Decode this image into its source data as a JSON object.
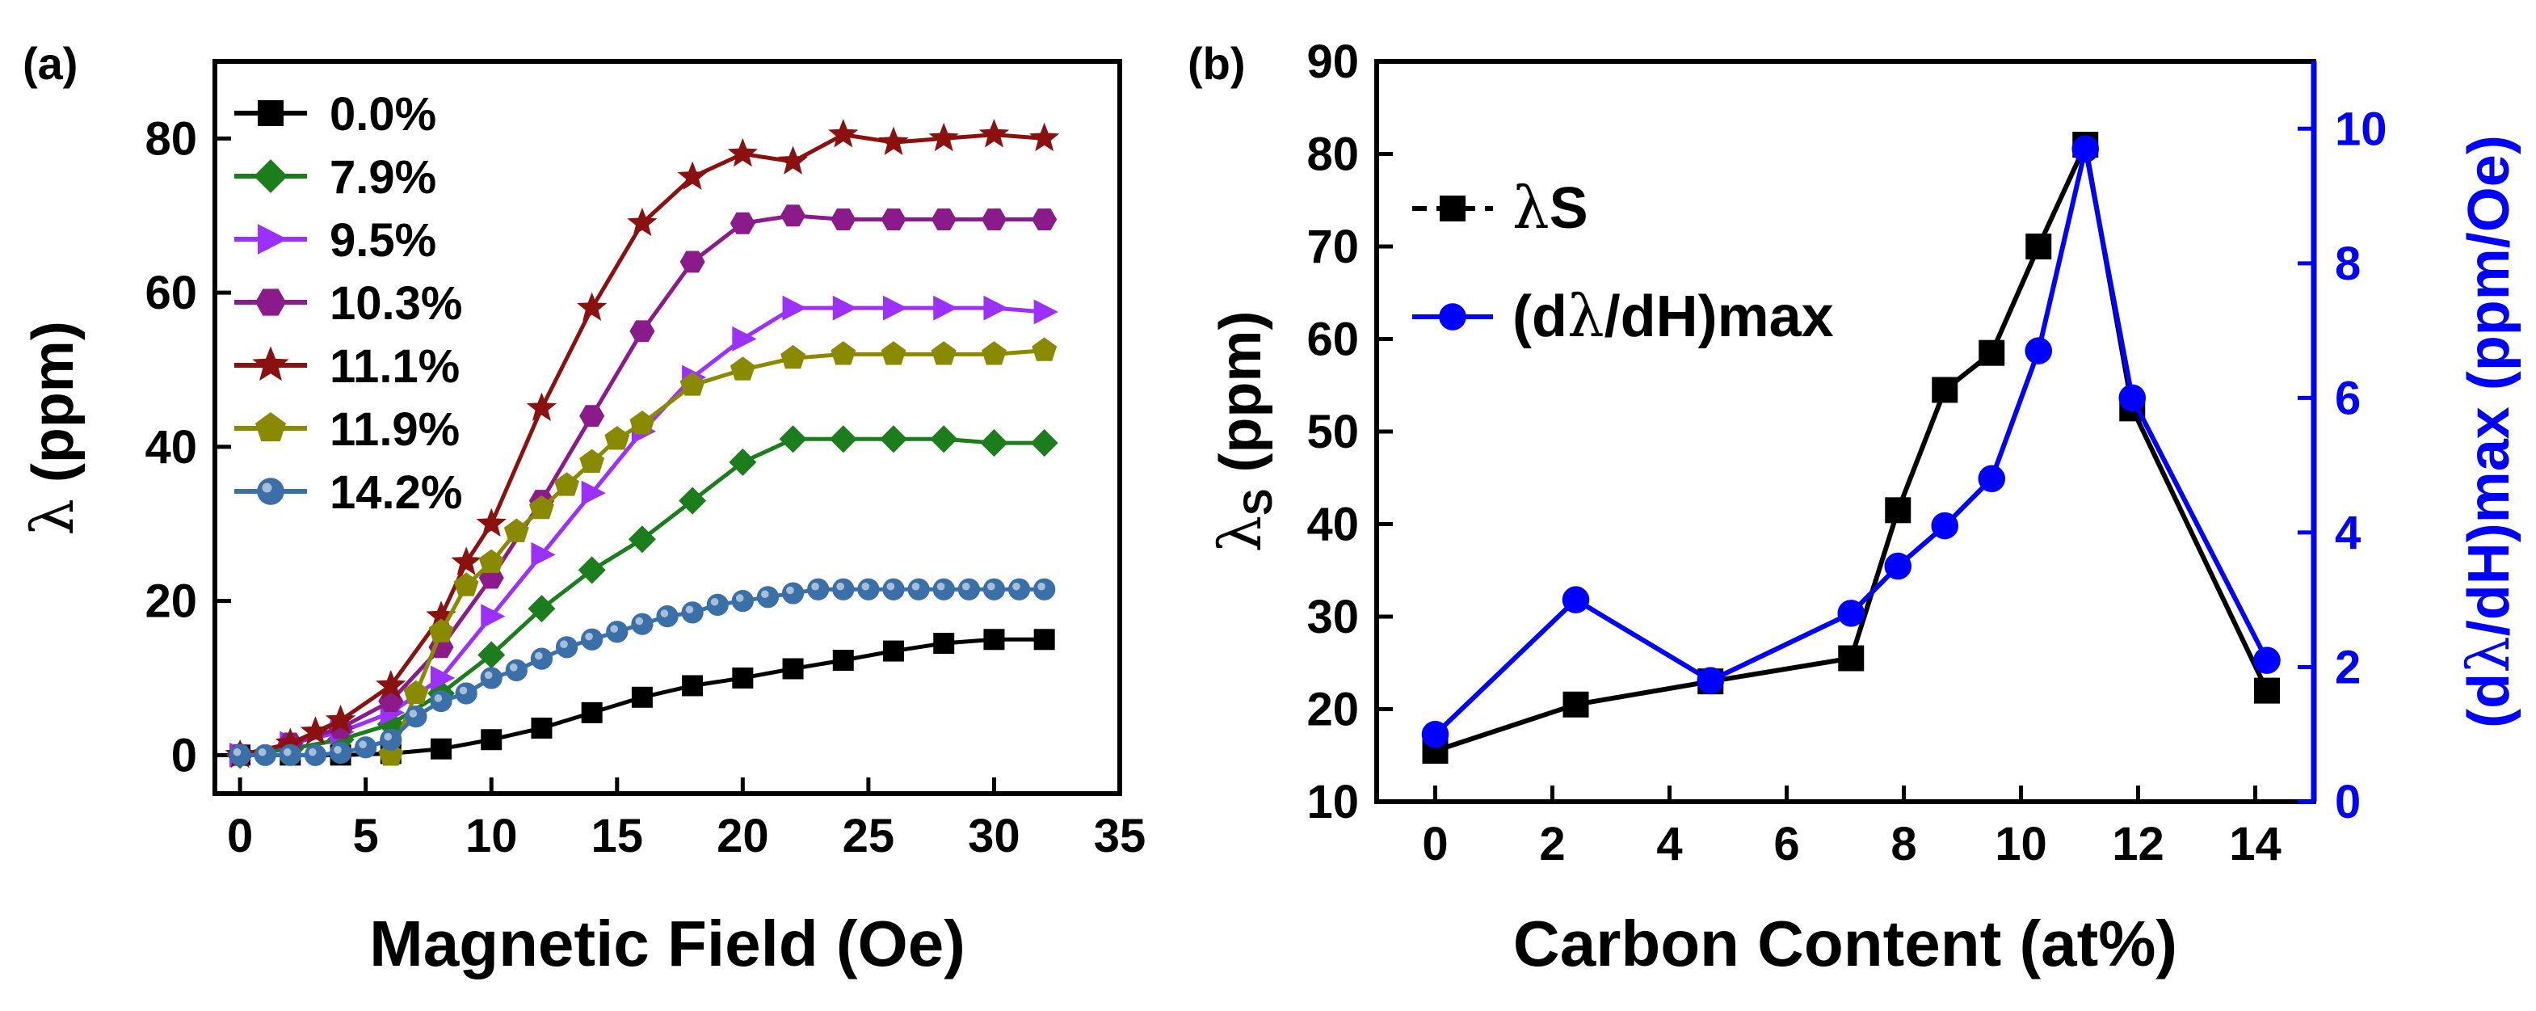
{
  "chart_data": [
    {
      "type": "line",
      "panel_label": "(a)",
      "xlabel": "Magnetic Field (Oe)",
      "ylabel": {
        "symbol": "λ",
        "rest": " (ppm)"
      },
      "xlim": [
        -1,
        35
      ],
      "ylim": [
        -5,
        90
      ],
      "xticks": [
        "0",
        "5",
        "10",
        "15",
        "20",
        "25",
        "30",
        "35"
      ],
      "xtick_values": [
        0,
        5,
        10,
        15,
        20,
        25,
        30,
        35
      ],
      "yticks": [
        "0",
        "20",
        "40",
        "60",
        "80"
      ],
      "ytick_values": [
        0,
        20,
        40,
        60,
        80
      ],
      "legend_position": "top-left",
      "series": [
        {
          "name": "0.0%",
          "color": "#000000",
          "marker": "square",
          "x": [
            0,
            2,
            4,
            6,
            8,
            10,
            12,
            14,
            16,
            18,
            20,
            22,
            24,
            26,
            28,
            30,
            32
          ],
          "y": [
            0,
            0,
            0,
            0.2,
            0.8,
            2,
            3.5,
            5.5,
            7.5,
            9,
            10,
            11.2,
            12.3,
            13.5,
            14.5,
            15,
            15
          ]
        },
        {
          "name": "7.9%",
          "color": "#1b7d1b",
          "marker": "diamond",
          "x": [
            0,
            2,
            4,
            6,
            8,
            10,
            12,
            14,
            16,
            18,
            20,
            22,
            24,
            26,
            28,
            30,
            32
          ],
          "y": [
            0,
            0.8,
            2,
            4,
            8,
            13,
            19,
            24,
            28,
            33,
            38,
            41,
            41,
            41,
            41,
            40.5,
            40.5
          ]
        },
        {
          "name": "9.5%",
          "color": "#9b30ff",
          "marker": "triangle-right",
          "x": [
            0,
            2,
            4,
            6,
            8,
            10,
            12,
            14,
            16,
            18,
            20,
            22,
            24,
            26,
            28,
            30,
            32
          ],
          "y": [
            0,
            1.5,
            3,
            5.5,
            10,
            18,
            26,
            34,
            42,
            49,
            54,
            58,
            58,
            58,
            58,
            58,
            57.5
          ]
        },
        {
          "name": "10.3%",
          "color": "#8b1a8b",
          "marker": "hexagon",
          "x": [
            0,
            2,
            4,
            6,
            8,
            10,
            12,
            14,
            16,
            18,
            20,
            22,
            24,
            26,
            28,
            30,
            32
          ],
          "y": [
            0,
            1.5,
            3.5,
            7,
            14,
            23,
            33,
            44,
            55,
            64,
            69,
            70,
            69.5,
            69.5,
            69.5,
            69.5,
            69.5
          ]
        },
        {
          "name": "11.1%",
          "color": "#8b1010",
          "marker": "star",
          "x": [
            0,
            2,
            3,
            4,
            6,
            8,
            9,
            10,
            12,
            14,
            16,
            18,
            20,
            22,
            24,
            26,
            28,
            30,
            32
          ],
          "y": [
            0,
            1.5,
            3,
            4.5,
            9,
            18,
            25,
            30,
            45,
            58,
            69,
            75,
            78,
            77,
            80.5,
            79.5,
            80,
            80.5,
            80
          ]
        },
        {
          "name": "11.9%",
          "color": "#8a8a00",
          "marker": "pentagon",
          "x": [
            6,
            7,
            8,
            9,
            10,
            11,
            12,
            13,
            14,
            15,
            16,
            18,
            20,
            22,
            24,
            26,
            28,
            30,
            32
          ],
          "y": [
            0,
            8,
            16,
            22,
            25,
            29,
            32,
            35,
            38,
            41,
            43,
            48,
            50,
            51.5,
            52,
            52,
            52,
            52,
            52.5
          ]
        },
        {
          "name": "14.2%",
          "color": "#3a6fa8",
          "marker": "circle",
          "x": [
            0,
            1,
            2,
            3,
            4,
            5,
            6,
            7,
            8,
            9,
            10,
            11,
            12,
            13,
            14,
            15,
            16,
            17,
            18,
            19,
            20,
            21,
            22,
            23,
            24,
            25,
            26,
            27,
            28,
            29,
            30,
            31,
            32
          ],
          "y": [
            0,
            0,
            0,
            0,
            0.3,
            1,
            2,
            5,
            7,
            8,
            10,
            11,
            12.5,
            14,
            15,
            16,
            17,
            18,
            18.5,
            19.5,
            20,
            20.5,
            21,
            21.5,
            21.5,
            21.5,
            21.5,
            21.5,
            21.5,
            21.5,
            21.5,
            21.5,
            21.5
          ]
        }
      ]
    },
    {
      "type": "line",
      "panel_label": "(b)",
      "xlabel": "Carbon Content (at%)",
      "ylabel_left": {
        "symbol": "λ",
        "sub": "S",
        "rest": " (ppm)"
      },
      "ylabel_right": {
        "symbol": "λ",
        "before": "(d",
        "rest": "/dH)max (ppm/Oe)"
      },
      "xlim": [
        -1,
        15
      ],
      "ylim_left": [
        10,
        90
      ],
      "ylim_right": [
        0,
        11
      ],
      "xticks": [
        "0",
        "2",
        "4",
        "6",
        "8",
        "10",
        "12",
        "14"
      ],
      "xtick_values": [
        0,
        2,
        4,
        6,
        8,
        10,
        12,
        14
      ],
      "yticks_left": [
        "10",
        "20",
        "30",
        "40",
        "50",
        "60",
        "70",
        "80",
        "90"
      ],
      "ytick_values_left": [
        10,
        20,
        30,
        40,
        50,
        60,
        70,
        80,
        90
      ],
      "yticks_right": [
        "0",
        "2",
        "4",
        "6",
        "8",
        "10"
      ],
      "ytick_values_right": [
        0,
        2,
        4,
        6,
        8,
        10
      ],
      "legend_position": "top-left",
      "series": [
        {
          "name": "λS",
          "name_symbol": "λ",
          "name_rest": "S",
          "axis": "left",
          "color": "#000000",
          "marker": "square",
          "x": [
            0,
            2.4,
            4.7,
            7.1,
            7.9,
            8.7,
            9.5,
            10.3,
            11.1,
            11.9,
            14.2
          ],
          "y": [
            15.5,
            20.5,
            23,
            25.5,
            41.5,
            54.5,
            58.5,
            70,
            81,
            52.5,
            22
          ]
        },
        {
          "name": "(dλ/dH)max",
          "name_symbol": "λ",
          "name_before": "(d",
          "name_rest": "/dH)max",
          "axis": "right",
          "color": "#0000ff",
          "marker": "circle",
          "x": [
            0,
            2.4,
            4.7,
            7.1,
            7.9,
            8.7,
            9.5,
            10.3,
            11.1,
            11.9,
            14.2
          ],
          "y": [
            1.0,
            3.0,
            1.8,
            2.8,
            3.5,
            4.1,
            4.8,
            6.7,
            9.7,
            6.0,
            2.1
          ]
        }
      ]
    }
  ]
}
